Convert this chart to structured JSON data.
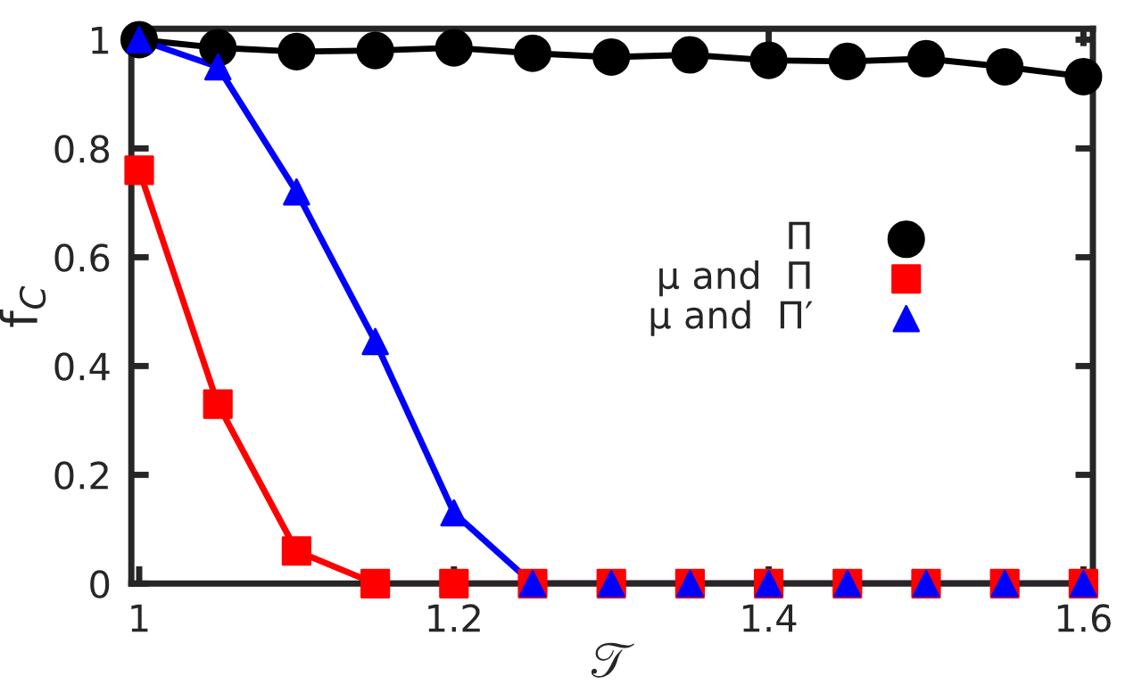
{
  "chart_data": {
    "type": "line",
    "xlabel": "𝒯",
    "ylabel": "f$_{C}$",
    "x": [
      1.0,
      1.05,
      1.1,
      1.15,
      1.2,
      1.25,
      1.3,
      1.35,
      1.4,
      1.45,
      1.5,
      1.55,
      1.6
    ],
    "series": [
      {
        "name": "Π",
        "color": "#000000",
        "marker": "circle",
        "values": [
          1.0,
          0.985,
          0.978,
          0.98,
          0.985,
          0.975,
          0.968,
          0.972,
          0.962,
          0.96,
          0.965,
          0.95,
          0.932
        ]
      },
      {
        "name": "μ and  Π",
        "color": "#ff0000",
        "marker": "square",
        "values": [
          0.76,
          0.33,
          0.06,
          0,
          0,
          0,
          0,
          0,
          0,
          0,
          0,
          0,
          0
        ]
      },
      {
        "name": "μ and  Π′",
        "color": "#0000ff",
        "marker": "triangle",
        "values": [
          1.0,
          0.95,
          0.72,
          0.445,
          0.13,
          0,
          0,
          0,
          0,
          0,
          0,
          0,
          0
        ]
      }
    ],
    "xlim": [
      0.995,
      1.606
    ],
    "ylim": [
      0,
      1.02
    ],
    "xticks": [
      1,
      1.2,
      1.4,
      1.6
    ],
    "yticks": [
      0,
      0.2,
      0.4,
      0.6,
      0.8,
      1
    ],
    "grid": false,
    "legend": "right",
    "line_style": "solid"
  }
}
